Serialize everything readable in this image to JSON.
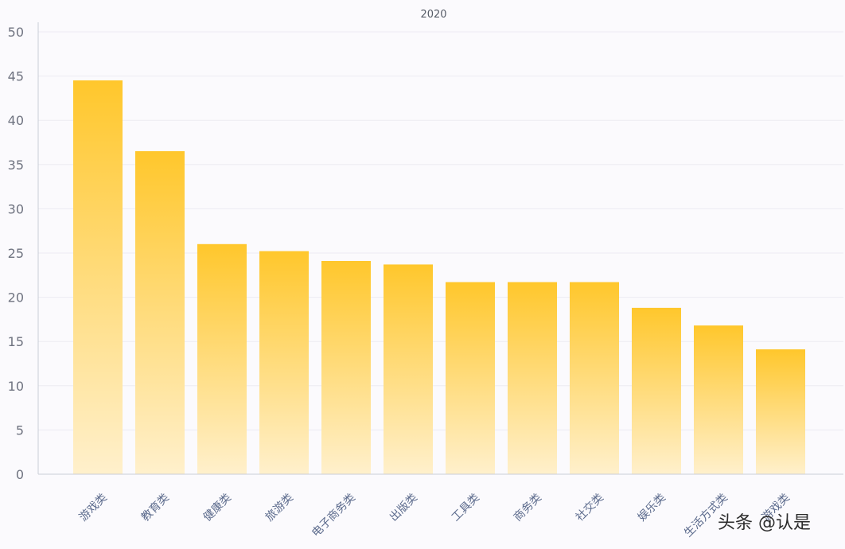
{
  "chart_data": {
    "type": "bar",
    "title": "2020",
    "categories": [
      "游戏类",
      "教育类",
      "健康类",
      "旅游类",
      "电子商务类",
      "出版类",
      "工具类",
      "商务类",
      "社交类",
      "娱乐类",
      "生活方式类",
      "游戏类"
    ],
    "values": [
      44.5,
      36.5,
      26,
      25.2,
      24.1,
      23.7,
      21.7,
      21.7,
      21.7,
      18.8,
      16.8,
      14.1
    ],
    "ylim": [
      0,
      50
    ],
    "yticks": [
      0,
      5,
      10,
      15,
      20,
      25,
      30,
      35,
      40,
      45,
      50
    ],
    "grid": true,
    "legend": "none",
    "colors": {
      "bar_top": "#ffc72c",
      "bar_bottom": "#fff0cc",
      "grid": "#ecebf2",
      "axis": "#c9cdd6"
    }
  },
  "watermark": "头条 @认是"
}
